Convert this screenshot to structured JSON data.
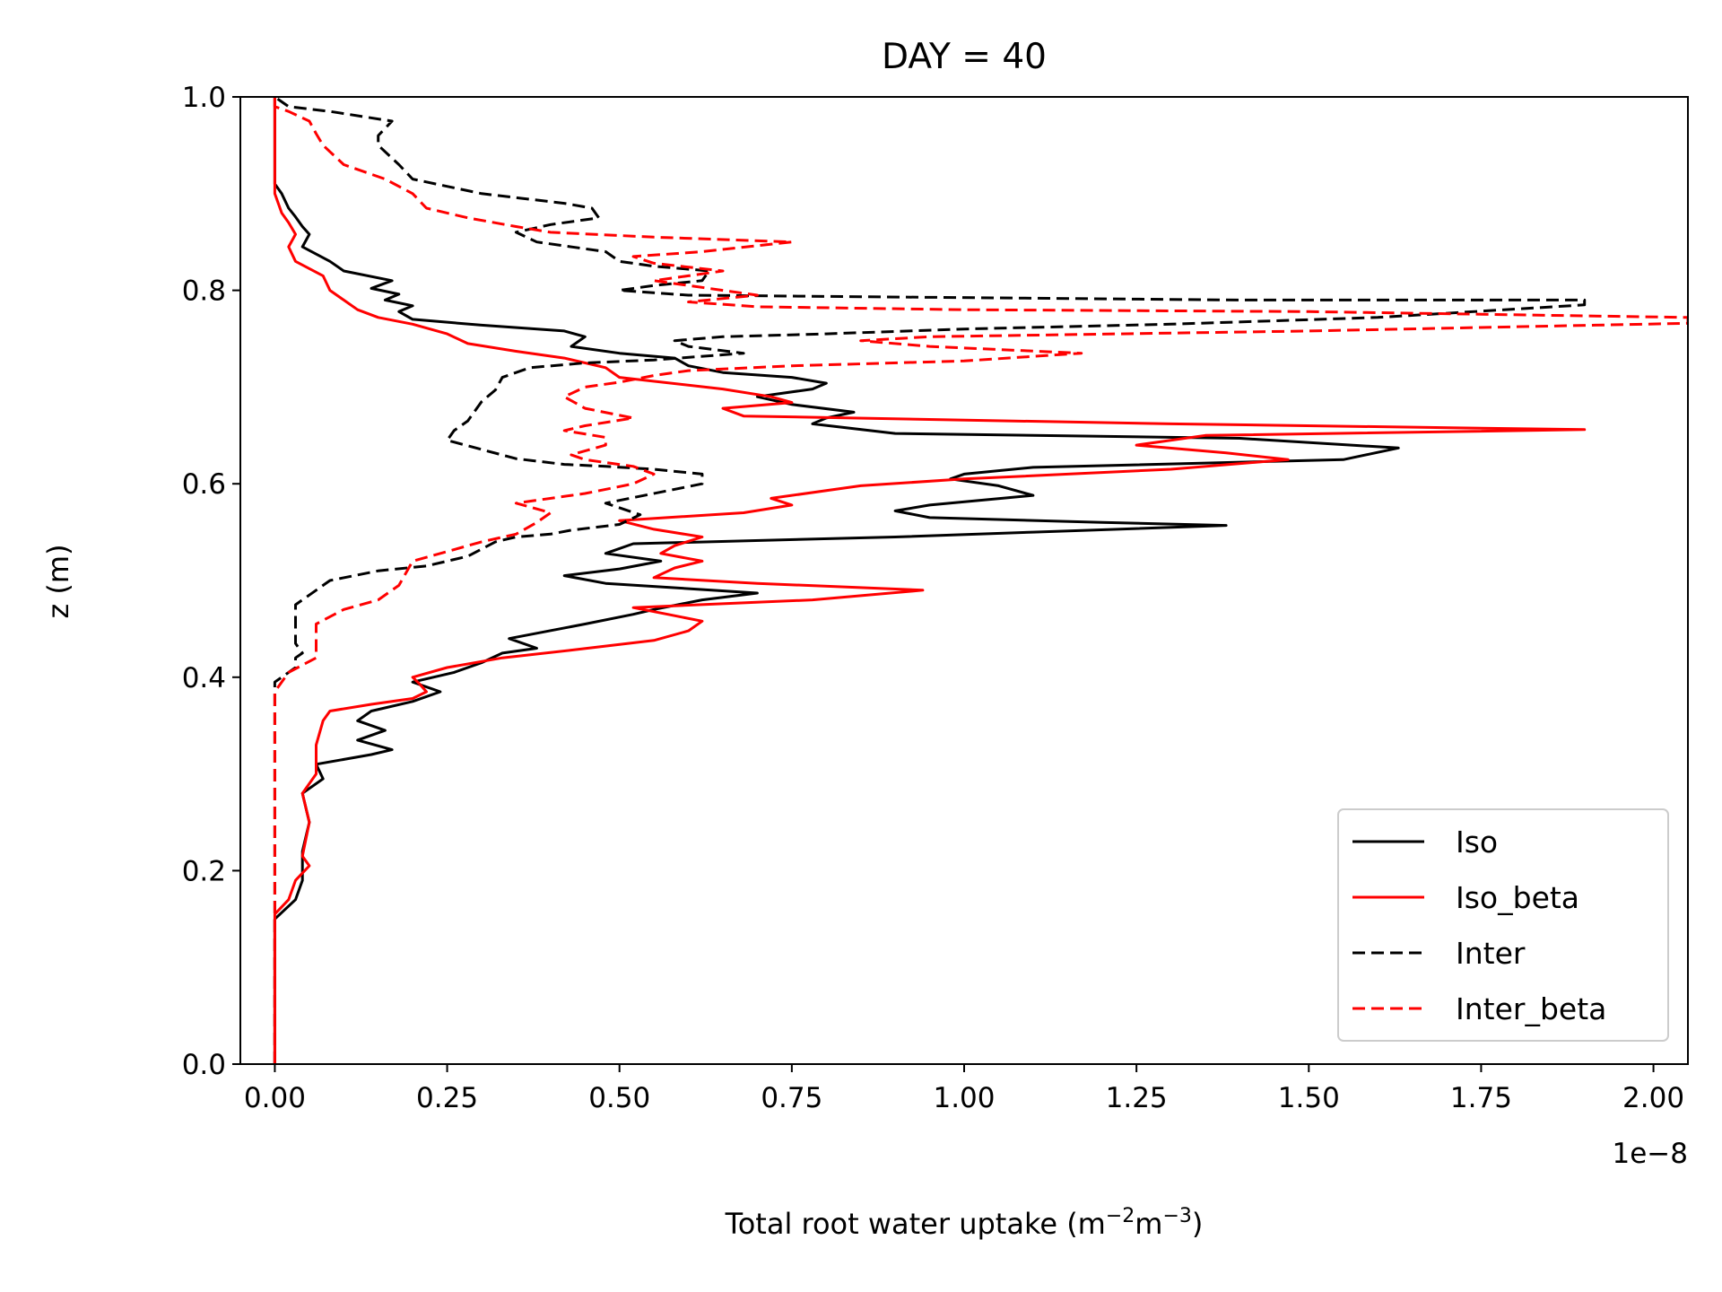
{
  "chart_data": {
    "type": "line",
    "title": "DAY = 40",
    "xlabel": "Total root water uptake (m",
    "xlabel_sup1": "−2",
    "xlabel_mid": "m",
    "xlabel_sup2": "−3",
    "xlabel_end": ")",
    "ylabel": "z (m)",
    "x_offset_text": "1e−8",
    "xlim": [
      -0.05,
      2.05
    ],
    "ylim": [
      0.0,
      1.0
    ],
    "xticks": [
      0.0,
      0.25,
      0.5,
      0.75,
      1.0,
      1.25,
      1.5,
      1.75,
      2.0
    ],
    "xtick_labels": [
      "0.00",
      "0.25",
      "0.50",
      "0.75",
      "1.00",
      "1.25",
      "1.50",
      "1.75",
      "2.00"
    ],
    "yticks": [
      0.0,
      0.2,
      0.4,
      0.6,
      0.8,
      1.0
    ],
    "ytick_labels": [
      "0.0",
      "0.2",
      "0.4",
      "0.6",
      "0.8",
      "1.0"
    ],
    "grid": false,
    "legend_position": "lower-right",
    "series": [
      {
        "name": "Iso",
        "color": "#000000",
        "dash": "solid",
        "points": [
          [
            0.0,
            0.0
          ],
          [
            0.0,
            0.15
          ],
          [
            0.03,
            0.17
          ],
          [
            0.04,
            0.19
          ],
          [
            0.04,
            0.22
          ],
          [
            0.05,
            0.25
          ],
          [
            0.04,
            0.28
          ],
          [
            0.07,
            0.295
          ],
          [
            0.06,
            0.31
          ],
          [
            0.14,
            0.32
          ],
          [
            0.17,
            0.325
          ],
          [
            0.12,
            0.335
          ],
          [
            0.16,
            0.345
          ],
          [
            0.12,
            0.355
          ],
          [
            0.14,
            0.365
          ],
          [
            0.2,
            0.375
          ],
          [
            0.24,
            0.385
          ],
          [
            0.2,
            0.395
          ],
          [
            0.26,
            0.405
          ],
          [
            0.3,
            0.415
          ],
          [
            0.33,
            0.425
          ],
          [
            0.38,
            0.43
          ],
          [
            0.34,
            0.44
          ],
          [
            0.45,
            0.455
          ],
          [
            0.52,
            0.465
          ],
          [
            0.55,
            0.47
          ],
          [
            0.62,
            0.48
          ],
          [
            0.7,
            0.487
          ],
          [
            0.48,
            0.497
          ],
          [
            0.42,
            0.505
          ],
          [
            0.5,
            0.512
          ],
          [
            0.56,
            0.52
          ],
          [
            0.48,
            0.528
          ],
          [
            0.52,
            0.538
          ],
          [
            0.9,
            0.545
          ],
          [
            1.1,
            0.55
          ],
          [
            1.38,
            0.557
          ],
          [
            1.2,
            0.56
          ],
          [
            0.95,
            0.565
          ],
          [
            0.9,
            0.572
          ],
          [
            0.95,
            0.578
          ],
          [
            1.1,
            0.588
          ],
          [
            1.05,
            0.598
          ],
          [
            0.98,
            0.605
          ],
          [
            1.0,
            0.61
          ],
          [
            1.1,
            0.617
          ],
          [
            1.55,
            0.625
          ],
          [
            1.63,
            0.637
          ],
          [
            1.4,
            0.647
          ],
          [
            0.9,
            0.652
          ],
          [
            0.78,
            0.662
          ],
          [
            0.8,
            0.668
          ],
          [
            0.84,
            0.674
          ],
          [
            0.75,
            0.682
          ],
          [
            0.7,
            0.69
          ],
          [
            0.78,
            0.698
          ],
          [
            0.8,
            0.704
          ],
          [
            0.75,
            0.71
          ],
          [
            0.65,
            0.715
          ],
          [
            0.6,
            0.722
          ],
          [
            0.58,
            0.73
          ],
          [
            0.5,
            0.735
          ],
          [
            0.43,
            0.742
          ],
          [
            0.45,
            0.752
          ],
          [
            0.42,
            0.758
          ],
          [
            0.3,
            0.764
          ],
          [
            0.2,
            0.77
          ],
          [
            0.18,
            0.778
          ],
          [
            0.2,
            0.784
          ],
          [
            0.16,
            0.79
          ],
          [
            0.18,
            0.796
          ],
          [
            0.14,
            0.802
          ],
          [
            0.17,
            0.81
          ],
          [
            0.1,
            0.82
          ],
          [
            0.08,
            0.83
          ],
          [
            0.04,
            0.845
          ],
          [
            0.05,
            0.858
          ],
          [
            0.04,
            0.866
          ],
          [
            0.03,
            0.876
          ],
          [
            0.02,
            0.885
          ],
          [
            0.01,
            0.9
          ],
          [
            0.0,
            0.91
          ],
          [
            0.0,
            1.0
          ]
        ]
      },
      {
        "name": "Iso_beta",
        "color": "#ff0000",
        "dash": "solid",
        "points": [
          [
            0.0,
            0.0
          ],
          [
            0.0,
            0.155
          ],
          [
            0.02,
            0.17
          ],
          [
            0.03,
            0.19
          ],
          [
            0.05,
            0.205
          ],
          [
            0.04,
            0.215
          ],
          [
            0.05,
            0.25
          ],
          [
            0.04,
            0.28
          ],
          [
            0.06,
            0.3
          ],
          [
            0.06,
            0.33
          ],
          [
            0.07,
            0.355
          ],
          [
            0.08,
            0.365
          ],
          [
            0.14,
            0.372
          ],
          [
            0.2,
            0.378
          ],
          [
            0.22,
            0.385
          ],
          [
            0.21,
            0.393
          ],
          [
            0.2,
            0.4
          ],
          [
            0.25,
            0.41
          ],
          [
            0.33,
            0.42
          ],
          [
            0.43,
            0.428
          ],
          [
            0.55,
            0.438
          ],
          [
            0.6,
            0.448
          ],
          [
            0.62,
            0.458
          ],
          [
            0.57,
            0.465
          ],
          [
            0.52,
            0.472
          ],
          [
            0.78,
            0.48
          ],
          [
            0.94,
            0.49
          ],
          [
            0.7,
            0.497
          ],
          [
            0.55,
            0.503
          ],
          [
            0.58,
            0.513
          ],
          [
            0.62,
            0.52
          ],
          [
            0.56,
            0.528
          ],
          [
            0.58,
            0.536
          ],
          [
            0.62,
            0.545
          ],
          [
            0.55,
            0.553
          ],
          [
            0.5,
            0.562
          ],
          [
            0.68,
            0.57
          ],
          [
            0.75,
            0.578
          ],
          [
            0.72,
            0.585
          ],
          [
            0.85,
            0.598
          ],
          [
            1.0,
            0.605
          ],
          [
            1.3,
            0.615
          ],
          [
            1.47,
            0.625
          ],
          [
            1.38,
            0.632
          ],
          [
            1.25,
            0.64
          ],
          [
            1.35,
            0.65
          ],
          [
            1.9,
            0.656
          ],
          [
            1.3,
            0.662
          ],
          [
            0.68,
            0.67
          ],
          [
            0.65,
            0.678
          ],
          [
            0.75,
            0.684
          ],
          [
            0.72,
            0.69
          ],
          [
            0.65,
            0.698
          ],
          [
            0.5,
            0.71
          ],
          [
            0.48,
            0.72
          ],
          [
            0.42,
            0.73
          ],
          [
            0.35,
            0.737
          ],
          [
            0.28,
            0.745
          ],
          [
            0.25,
            0.755
          ],
          [
            0.2,
            0.765
          ],
          [
            0.15,
            0.772
          ],
          [
            0.12,
            0.78
          ],
          [
            0.1,
            0.79
          ],
          [
            0.08,
            0.8
          ],
          [
            0.07,
            0.815
          ],
          [
            0.03,
            0.83
          ],
          [
            0.02,
            0.845
          ],
          [
            0.03,
            0.858
          ],
          [
            0.02,
            0.87
          ],
          [
            0.01,
            0.88
          ],
          [
            0.0,
            0.9
          ],
          [
            0.0,
            1.0
          ]
        ]
      },
      {
        "name": "Inter",
        "color": "#000000",
        "dash": "dashed",
        "points": [
          [
            0.0,
            0.0
          ],
          [
            0.0,
            0.395
          ],
          [
            0.03,
            0.41
          ],
          [
            0.03,
            0.42
          ],
          [
            0.04,
            0.425
          ],
          [
            0.03,
            0.435
          ],
          [
            0.03,
            0.46
          ],
          [
            0.03,
            0.475
          ],
          [
            0.05,
            0.485
          ],
          [
            0.08,
            0.5
          ],
          [
            0.15,
            0.51
          ],
          [
            0.22,
            0.515
          ],
          [
            0.28,
            0.525
          ],
          [
            0.32,
            0.54
          ],
          [
            0.35,
            0.545
          ],
          [
            0.4,
            0.548
          ],
          [
            0.43,
            0.552
          ],
          [
            0.5,
            0.558
          ],
          [
            0.53,
            0.568
          ],
          [
            0.48,
            0.58
          ],
          [
            0.62,
            0.6
          ],
          [
            0.62,
            0.61
          ],
          [
            0.55,
            0.615
          ],
          [
            0.48,
            0.618
          ],
          [
            0.42,
            0.62
          ],
          [
            0.35,
            0.626
          ],
          [
            0.25,
            0.645
          ],
          [
            0.26,
            0.655
          ],
          [
            0.28,
            0.665
          ],
          [
            0.3,
            0.685
          ],
          [
            0.32,
            0.697
          ],
          [
            0.33,
            0.71
          ],
          [
            0.37,
            0.72
          ],
          [
            0.45,
            0.725
          ],
          [
            0.55,
            0.728
          ],
          [
            0.68,
            0.735
          ],
          [
            0.6,
            0.742
          ],
          [
            0.58,
            0.748
          ],
          [
            0.65,
            0.752
          ],
          [
            0.8,
            0.755
          ],
          [
            1.0,
            0.76
          ],
          [
            1.3,
            0.765
          ],
          [
            1.6,
            0.772
          ],
          [
            1.9,
            0.785
          ],
          [
            1.9,
            0.79
          ],
          [
            1.4,
            0.79
          ],
          [
            0.6,
            0.795
          ],
          [
            0.5,
            0.8
          ],
          [
            0.55,
            0.805
          ],
          [
            0.62,
            0.81
          ],
          [
            0.63,
            0.82
          ],
          [
            0.55,
            0.825
          ],
          [
            0.5,
            0.83
          ],
          [
            0.48,
            0.84
          ],
          [
            0.38,
            0.85
          ],
          [
            0.35,
            0.86
          ],
          [
            0.4,
            0.868
          ],
          [
            0.47,
            0.875
          ],
          [
            0.46,
            0.885
          ],
          [
            0.42,
            0.89
          ],
          [
            0.3,
            0.9
          ],
          [
            0.2,
            0.915
          ],
          [
            0.18,
            0.93
          ],
          [
            0.15,
            0.95
          ],
          [
            0.15,
            0.96
          ],
          [
            0.17,
            0.975
          ],
          [
            0.08,
            0.985
          ],
          [
            0.02,
            0.99
          ],
          [
            0.0,
            1.0
          ]
        ]
      },
      {
        "name": "Inter_beta",
        "color": "#ff0000",
        "dash": "dashed",
        "points": [
          [
            0.0,
            0.0
          ],
          [
            0.0,
            0.385
          ],
          [
            0.02,
            0.405
          ],
          [
            0.06,
            0.42
          ],
          [
            0.06,
            0.44
          ],
          [
            0.06,
            0.455
          ],
          [
            0.1,
            0.47
          ],
          [
            0.15,
            0.48
          ],
          [
            0.18,
            0.495
          ],
          [
            0.2,
            0.52
          ],
          [
            0.25,
            0.53
          ],
          [
            0.3,
            0.54
          ],
          [
            0.35,
            0.548
          ],
          [
            0.38,
            0.56
          ],
          [
            0.4,
            0.57
          ],
          [
            0.35,
            0.58
          ],
          [
            0.45,
            0.59
          ],
          [
            0.52,
            0.6
          ],
          [
            0.55,
            0.61
          ],
          [
            0.52,
            0.618
          ],
          [
            0.45,
            0.625
          ],
          [
            0.43,
            0.63
          ],
          [
            0.48,
            0.64
          ],
          [
            0.48,
            0.648
          ],
          [
            0.42,
            0.655
          ],
          [
            0.45,
            0.66
          ],
          [
            0.52,
            0.668
          ],
          [
            0.45,
            0.678
          ],
          [
            0.42,
            0.69
          ],
          [
            0.45,
            0.7
          ],
          [
            0.5,
            0.705
          ],
          [
            0.55,
            0.712
          ],
          [
            0.6,
            0.717
          ],
          [
            0.75,
            0.722
          ],
          [
            1.0,
            0.727
          ],
          [
            1.17,
            0.735
          ],
          [
            0.95,
            0.742
          ],
          [
            0.85,
            0.748
          ],
          [
            0.95,
            0.752
          ],
          [
            1.5,
            0.758
          ],
          [
            2.05,
            0.766
          ],
          [
            2.05,
            0.772
          ],
          [
            1.5,
            0.778
          ],
          [
            1.0,
            0.78
          ],
          [
            0.7,
            0.783
          ],
          [
            0.6,
            0.788
          ],
          [
            0.7,
            0.795
          ],
          [
            0.65,
            0.8
          ],
          [
            0.6,
            0.805
          ],
          [
            0.55,
            0.81
          ],
          [
            0.6,
            0.815
          ],
          [
            0.65,
            0.82
          ],
          [
            0.55,
            0.828
          ],
          [
            0.52,
            0.835
          ],
          [
            0.62,
            0.84
          ],
          [
            0.75,
            0.85
          ],
          [
            0.55,
            0.855
          ],
          [
            0.4,
            0.86
          ],
          [
            0.35,
            0.866
          ],
          [
            0.28,
            0.875
          ],
          [
            0.22,
            0.885
          ],
          [
            0.2,
            0.9
          ],
          [
            0.16,
            0.915
          ],
          [
            0.1,
            0.93
          ],
          [
            0.07,
            0.95
          ],
          [
            0.06,
            0.962
          ],
          [
            0.05,
            0.975
          ],
          [
            0.02,
            0.985
          ],
          [
            0.0,
            0.99
          ],
          [
            0.0,
            1.0
          ]
        ]
      }
    ]
  }
}
